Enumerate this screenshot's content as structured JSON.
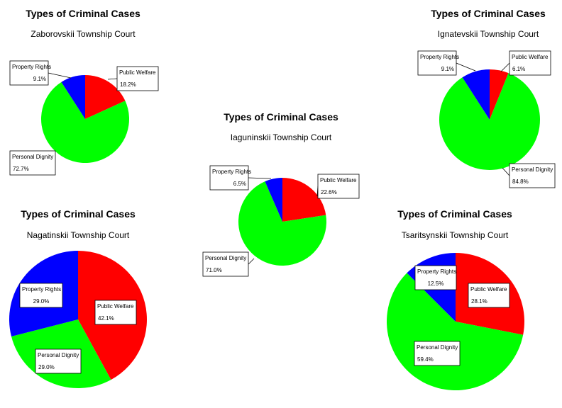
{
  "chart_data": [
    {
      "type": "pie",
      "title": "Types of Criminal Cases",
      "subtitle": "Zaborovskii Township Court",
      "slices": [
        {
          "label": "Public Welfare",
          "value": 18.2,
          "display": "18.2%",
          "color": "#ff0000"
        },
        {
          "label": "Personal Dignity",
          "value": 72.7,
          "display": "72.7%",
          "color": "#00ff00"
        },
        {
          "label": "Property Rights",
          "value": 9.1,
          "display": "9.1%",
          "color": "#0000ff"
        }
      ]
    },
    {
      "type": "pie",
      "title": "Types of Criminal Cases",
      "subtitle": "Ignatevskii Township Court",
      "slices": [
        {
          "label": "Public Welfare",
          "value": 6.1,
          "display": "6.1%",
          "color": "#ff0000"
        },
        {
          "label": "Personal Dignity",
          "value": 84.8,
          "display": "84.8%",
          "color": "#00ff00"
        },
        {
          "label": "Property Rights",
          "value": 9.1,
          "display": "9.1%",
          "color": "#0000ff"
        }
      ]
    },
    {
      "type": "pie",
      "title": "Types of Criminal Cases",
      "subtitle": "Iaguninskii Township Court",
      "slices": [
        {
          "label": "Public Welfare",
          "value": 22.6,
          "display": "22.6%",
          "color": "#ff0000"
        },
        {
          "label": "Personal Dignity",
          "value": 71.0,
          "display": "71.0%",
          "color": "#00ff00"
        },
        {
          "label": "Property Rights",
          "value": 6.5,
          "display": "6.5%",
          "color": "#0000ff"
        }
      ]
    },
    {
      "type": "pie",
      "title": "Types of Criminal Cases",
      "subtitle": "Nagatinskii Township Court",
      "slices": [
        {
          "label": "Public Welfare",
          "value": 42.1,
          "display": "42.1%",
          "color": "#ff0000"
        },
        {
          "label": "Personal Dignity",
          "value": 29.0,
          "display": "29.0%",
          "color": "#00ff00"
        },
        {
          "label": "Property Rights",
          "value": 29.0,
          "display": "29.0%",
          "color": "#0000ff"
        }
      ]
    },
    {
      "type": "pie",
      "title": "Types of Criminal Cases",
      "subtitle": "Tsaritsynskii Township Court",
      "slices": [
        {
          "label": "Public Welfare",
          "value": 28.1,
          "display": "28.1%",
          "color": "#ff0000"
        },
        {
          "label": "Personal Dignity",
          "value": 59.4,
          "display": "59.4%",
          "color": "#00ff00"
        },
        {
          "label": "Property Rights",
          "value": 12.5,
          "display": "12.5%",
          "color": "#0000ff"
        }
      ]
    }
  ]
}
